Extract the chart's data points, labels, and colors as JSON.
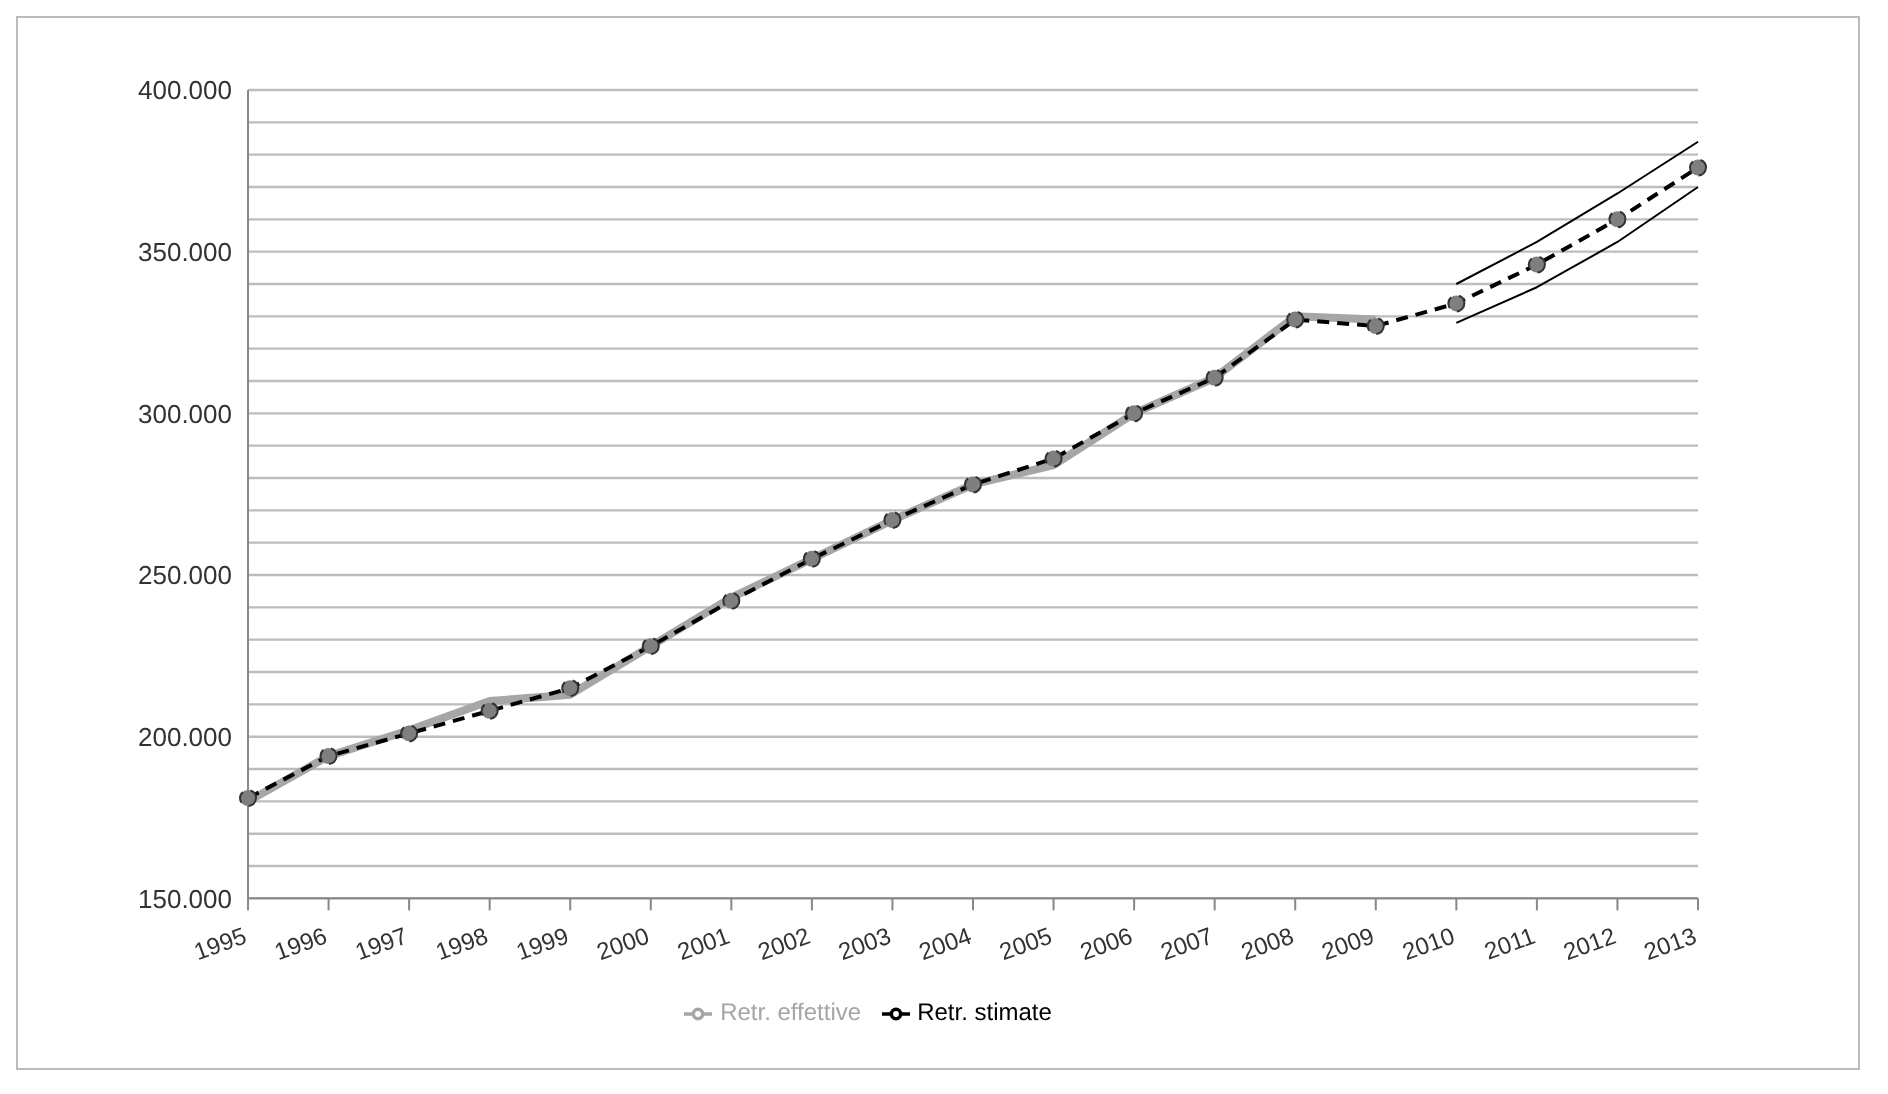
{
  "chart_data": {
    "type": "line",
    "categories": [
      "1995",
      "1996",
      "1997",
      "1998",
      "1999",
      "2000",
      "2001",
      "2002",
      "2003",
      "2004",
      "2005",
      "2006",
      "2007",
      "2008",
      "2009",
      "2010",
      "2011",
      "2012",
      "2013"
    ],
    "series": [
      {
        "name": "Retr. effettive",
        "color": "#a6a6a6",
        "marker": "none",
        "line_style": "solid",
        "values": [
          180000,
          194000,
          202000,
          211000,
          213000,
          228000,
          243000,
          255000,
          267000,
          278000,
          284000,
          300000,
          311000,
          330000,
          329000,
          null,
          null,
          null,
          null
        ]
      },
      {
        "name": "Retr. stimate",
        "color": "#000000",
        "marker": "circle",
        "line_style": "dashed",
        "values": [
          181000,
          194000,
          201000,
          208000,
          215000,
          228000,
          242000,
          255000,
          267000,
          278000,
          286000,
          300000,
          311000,
          329000,
          327000,
          334000,
          346000,
          360000,
          376000
        ]
      },
      {
        "color": "#000000",
        "marker": "none",
        "line_style": "solid",
        "values": [
          null,
          null,
          null,
          null,
          null,
          null,
          null,
          null,
          null,
          null,
          null,
          null,
          null,
          null,
          null,
          340000,
          353000,
          368000,
          384000
        ]
      },
      {
        "color": "#000000",
        "marker": "none",
        "line_style": "solid",
        "values": [
          null,
          null,
          null,
          null,
          null,
          null,
          null,
          null,
          null,
          null,
          null,
          null,
          null,
          null,
          null,
          328000,
          339000,
          353000,
          370000
        ]
      }
    ],
    "ylim": [
      150000,
      400000
    ],
    "yticks": [
      {
        "value": 150000,
        "label": "150.000"
      },
      {
        "value": 160000,
        "label": null
      },
      {
        "value": 170000,
        "label": null
      },
      {
        "value": 180000,
        "label": null
      },
      {
        "value": 190000,
        "label": null
      },
      {
        "value": 200000,
        "label": "200.000"
      },
      {
        "value": 210000,
        "label": null
      },
      {
        "value": 220000,
        "label": null
      },
      {
        "value": 230000,
        "label": null
      },
      {
        "value": 240000,
        "label": null
      },
      {
        "value": 250000,
        "label": "250.000"
      },
      {
        "value": 260000,
        "label": null
      },
      {
        "value": 270000,
        "label": null
      },
      {
        "value": 280000,
        "label": null
      },
      {
        "value": 290000,
        "label": null
      },
      {
        "value": 300000,
        "label": "300.000"
      },
      {
        "value": 310000,
        "label": null
      },
      {
        "value": 320000,
        "label": null
      },
      {
        "value": 330000,
        "label": null
      },
      {
        "value": 340000,
        "label": null
      },
      {
        "value": 350000,
        "label": "350.000"
      },
      {
        "value": 360000,
        "label": null
      },
      {
        "value": 370000,
        "label": null
      },
      {
        "value": 380000,
        "label": null
      },
      {
        "value": 390000,
        "label": null
      },
      {
        "value": 400000,
        "label": "400.000"
      }
    ],
    "grid": "y",
    "legend": "bottom"
  }
}
